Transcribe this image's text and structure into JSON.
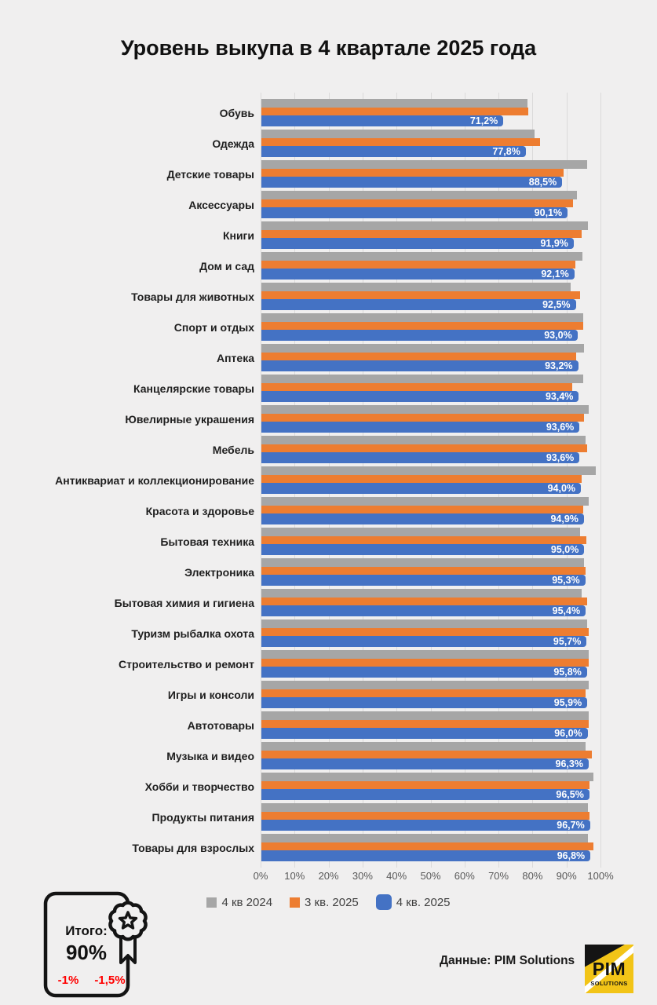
{
  "title": "Уровень выкупа в 4 квартале 2025 года",
  "chart_data": {
    "type": "bar",
    "orientation": "horizontal",
    "title": "Уровень выкупа в 4 квартале 2025 года",
    "categories": [
      "Обувь",
      "Одежда",
      "Детские товары",
      "Аксессуары",
      "Книги",
      "Дом и сад",
      "Товары для животных",
      "Спорт и отдых",
      "Аптека",
      "Канцелярские товары",
      "Ювелирные украшения",
      "Мебель",
      "Антиквариат и коллекционирование",
      "Красота и здоровье",
      "Бытовая техника",
      "Электроника",
      "Бытовая химия и гигиена",
      "Туризм рыбалка охота",
      "Строительство и ремонт",
      "Игры и консоли",
      "Автотовары",
      "Музыка и видео",
      "Хобби и творчество",
      "Продукты питания",
      "Товары для взрослых"
    ],
    "series": [
      {
        "name": "4 кв 2024",
        "color": "#A6A6A6",
        "data_labels": false,
        "values": [
          78.3,
          80.4,
          95.8,
          92.9,
          96.1,
          94.5,
          91.0,
          94.6,
          94.9,
          94.6,
          96.4,
          95.4,
          98.4,
          96.4,
          93.7,
          95.0,
          94.2,
          95.8,
          96.2,
          96.3,
          96.2,
          95.4,
          97.7,
          96.1,
          96.0
        ]
      },
      {
        "name": "3 кв. 2025",
        "color": "#ED7D31",
        "data_labels": false,
        "values": [
          78.6,
          82.0,
          88.8,
          91.7,
          94.2,
          92.3,
          93.8,
          94.8,
          92.7,
          91.5,
          95.0,
          95.8,
          94.2,
          94.8,
          95.6,
          95.4,
          95.8,
          96.3,
          96.4,
          95.4,
          96.3,
          97.3,
          96.5,
          96.5,
          97.7
        ]
      },
      {
        "name": "4 кв. 2025",
        "color": "#4472C4",
        "data_labels": true,
        "values": [
          71.2,
          77.8,
          88.5,
          90.1,
          91.9,
          92.1,
          92.5,
          93.0,
          93.2,
          93.4,
          93.6,
          93.6,
          94.0,
          94.9,
          95.0,
          95.3,
          95.4,
          95.7,
          95.8,
          95.9,
          96.0,
          96.3,
          96.5,
          96.7,
          96.8
        ]
      }
    ],
    "x_axis": {
      "min": 0,
      "max": 100,
      "tick_step": 10,
      "ticks": [
        "0%",
        "10%",
        "20%",
        "30%",
        "40%",
        "50%",
        "60%",
        "70%",
        "80%",
        "90%",
        "100%"
      ]
    },
    "legend_position": "bottom",
    "grid": true,
    "value_label_format": "comma-decimal-percent"
  },
  "footer": {
    "summary_badge": {
      "label": "Итого:",
      "value": "90%",
      "delta_quarter": "-1%",
      "delta_year": "-1,5%"
    },
    "source": "Данные: PIM Solutions",
    "logo": {
      "line1": "PIM",
      "line2": "SOLUTIONS"
    }
  },
  "colors": {
    "background": "#F0EFEF",
    "gridline": "#DBDADA",
    "axis_text": "#595959",
    "category_text": "#1F1F1F",
    "value_label_text": "#FFFFFF",
    "delta_text": "#FF0000",
    "logo_yellow": "#F2C417",
    "logo_black": "#141414"
  }
}
